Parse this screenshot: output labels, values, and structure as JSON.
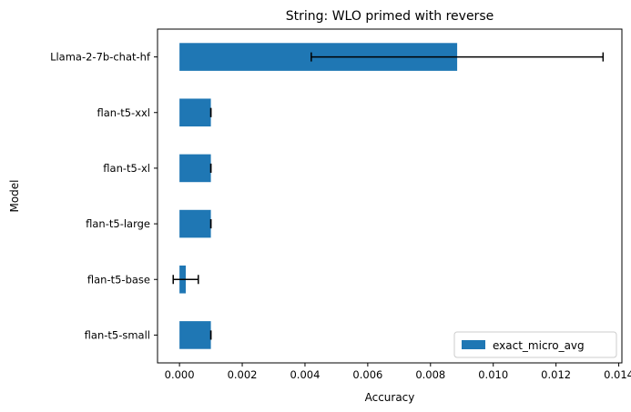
{
  "chart_data": {
    "type": "bar",
    "orientation": "horizontal",
    "title": "String: WLO primed with reverse",
    "xlabel": "Accuracy",
    "ylabel": "Model",
    "xlim": [
      -0.0007,
      0.0141
    ],
    "xticks": [
      0.0,
      0.002,
      0.004,
      0.006,
      0.008,
      0.01,
      0.012,
      0.014
    ],
    "xtick_labels": [
      "0.000",
      "0.002",
      "0.004",
      "0.006",
      "0.008",
      "0.010",
      "0.012",
      "0.014"
    ],
    "categories": [
      "Llama-2-7b-chat-hf",
      "flan-t5-xxl",
      "flan-t5-xl",
      "flan-t5-large",
      "flan-t5-base",
      "flan-t5-small"
    ],
    "series": [
      {
        "name": "exact_micro_avg",
        "color": "#1f77b4",
        "values": [
          0.00885,
          0.001,
          0.001,
          0.001,
          0.0002,
          0.001
        ],
        "error": [
          0.00465,
          0.0,
          0.0,
          0.0,
          0.0004,
          0.0
        ]
      }
    ],
    "legend": {
      "placement": "bottom-right",
      "entries": [
        "exact_micro_avg"
      ]
    },
    "grid": false
  }
}
